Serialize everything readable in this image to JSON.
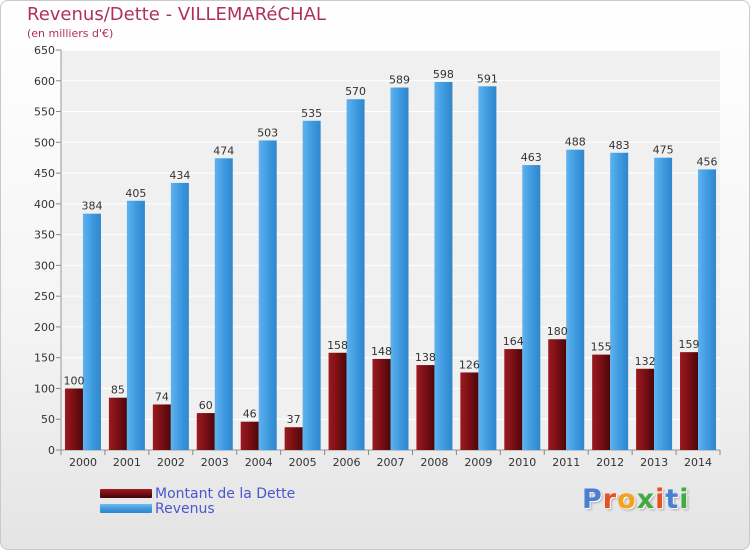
{
  "title": "Revenus/Dette - VILLEMARéCHAL",
  "subtitle": "(en milliers d'€)",
  "logo": {
    "text": "Proxiti",
    "colors": [
      "#4a7fd4",
      "#e7501f",
      "#f3a21b",
      "#43a944",
      "#e7501f",
      "#4a7fd4",
      "#43a944"
    ]
  },
  "colors": {
    "dette": "#7a0f14",
    "revenus": "#3f9be0",
    "title": "#b0305a",
    "legend_text": "#4a56cf"
  },
  "chart_data": {
    "type": "bar",
    "title": "Revenus/Dette - VILLEMARéCHAL",
    "subtitle": "(en milliers d'€)",
    "categories": [
      "2000",
      "2001",
      "2002",
      "2003",
      "2004",
      "2005",
      "2006",
      "2007",
      "2008",
      "2009",
      "2010",
      "2011",
      "2012",
      "2013",
      "2014"
    ],
    "series": [
      {
        "name": "Montant de la Dette",
        "values": [
          100,
          85,
          74,
          60,
          46,
          37,
          158,
          148,
          138,
          126,
          164,
          180,
          155,
          132,
          159
        ]
      },
      {
        "name": "Revenus",
        "values": [
          384,
          405,
          434,
          474,
          503,
          535,
          570,
          589,
          598,
          591,
          463,
          488,
          483,
          475,
          456
        ]
      }
    ],
    "ylim": [
      0,
      650
    ],
    "yticks": [
      0,
      50,
      100,
      150,
      200,
      250,
      300,
      350,
      400,
      450,
      500,
      550,
      600,
      650
    ],
    "grid": true,
    "legend": "bottom-left"
  }
}
